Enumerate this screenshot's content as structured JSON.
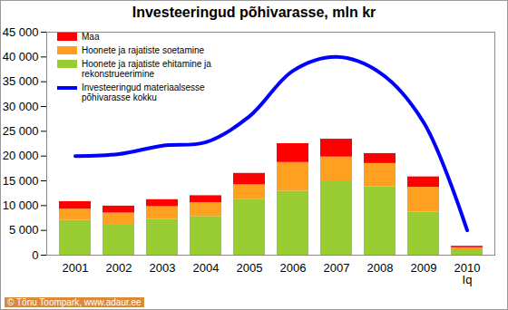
{
  "chart_data": {
    "type": "bar",
    "title": "Investeeringud põhivarasse, mln kr",
    "source": "© Tõnu Toompark, www.adaur.ee",
    "categories": [
      "2001",
      "2002",
      "2003",
      "2004",
      "2005",
      "2006",
      "2007",
      "2008",
      "2009",
      "2010\nIq"
    ],
    "stacked": true,
    "grid": false,
    "legend": "top-left",
    "series": [
      {
        "name": "Hoonete ja rajatiste ehitamine ja rekonstrueerimine",
        "type": "bar",
        "color": "#99cc33",
        "values": [
          7000,
          6200,
          7200,
          7800,
          11300,
          12900,
          15000,
          13800,
          8700,
          1100
        ]
      },
      {
        "name": "Hoonete ja rajatiste soetamine",
        "type": "bar",
        "color": "#ffa020",
        "values": [
          2300,
          2300,
          2600,
          2800,
          2900,
          5800,
          4800,
          4700,
          5000,
          400
        ]
      },
      {
        "name": "Maa",
        "type": "bar",
        "color": "#ff0000",
        "values": [
          1500,
          1400,
          1400,
          1400,
          2300,
          3800,
          3600,
          2000,
          2100,
          300
        ]
      },
      {
        "name": "Investeeringud materiaalsesse põhivarasse kokku",
        "type": "line",
        "color": "#0000ff",
        "values": [
          20000,
          20400,
          22100,
          22800,
          28000,
          37200,
          40000,
          36800,
          26800,
          5000
        ]
      }
    ],
    "ylim": [
      0,
      45000
    ],
    "yticks": [
      {
        "value": 0,
        "label": "0"
      },
      {
        "value": 5000,
        "label": "5 000"
      },
      {
        "value": 10000,
        "label": "10 000"
      },
      {
        "value": 15000,
        "label": "15 000"
      },
      {
        "value": 20000,
        "label": "20 000"
      },
      {
        "value": 25000,
        "label": "25 000"
      },
      {
        "value": 30000,
        "label": "30 000"
      },
      {
        "value": 35000,
        "label": "35 000"
      },
      {
        "value": 40000,
        "label": "40 000"
      },
      {
        "value": 45000,
        "label": "45 000"
      }
    ]
  }
}
